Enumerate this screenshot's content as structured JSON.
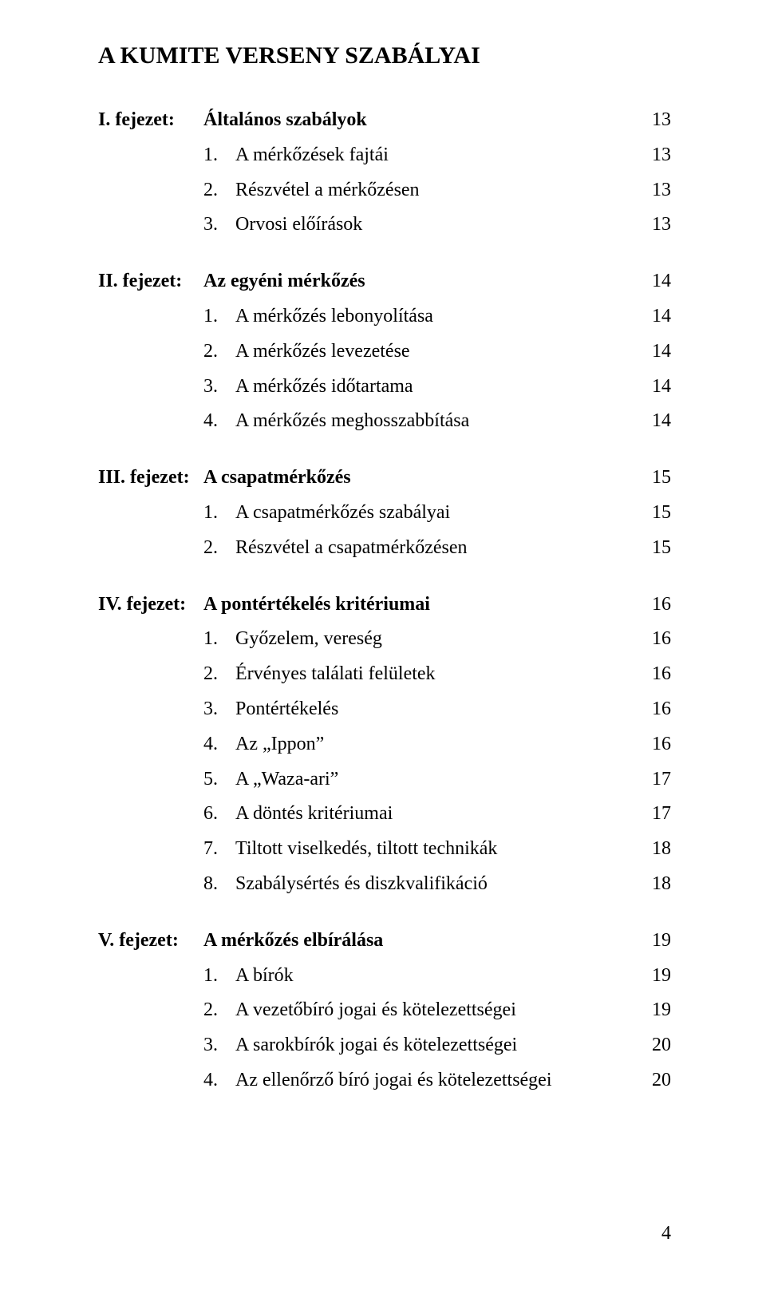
{
  "title": "A KUMITE VERSENY SZABÁLYAI",
  "sections": [
    {
      "lead": "I. fejezet:",
      "head_label": "Általános szabályok",
      "head_page": "13",
      "items": [
        {
          "num": "1.",
          "label": "A mérkőzések fajtái",
          "page": "13"
        },
        {
          "num": "2.",
          "label": "Részvétel a mérkőzésen",
          "page": "13"
        },
        {
          "num": "3.",
          "label": "Orvosi előírások",
          "page": "13"
        }
      ]
    },
    {
      "lead": "II. fejezet:",
      "head_label": "Az egyéni mérkőzés",
      "head_page": "14",
      "items": [
        {
          "num": "1.",
          "label": "A mérkőzés lebonyolítása",
          "page": "14"
        },
        {
          "num": "2.",
          "label": "A mérkőzés levezetése",
          "page": "14"
        },
        {
          "num": "3.",
          "label": "A mérkőzés időtartama",
          "page": "14"
        },
        {
          "num": "4.",
          "label": "A mérkőzés meghosszabbítása",
          "page": "14"
        }
      ]
    },
    {
      "lead": "III. fejezet:",
      "head_label": "A csapatmérkőzés",
      "head_page": "15",
      "items": [
        {
          "num": "1.",
          "label": "A csapatmérkőzés szabályai",
          "page": "15"
        },
        {
          "num": "2.",
          "label": "Részvétel a csapatmérkőzésen",
          "page": "15"
        }
      ]
    },
    {
      "lead": "IV. fejezet:",
      "head_label": "A pontértékelés kritériumai",
      "head_page": "16",
      "items": [
        {
          "num": "1.",
          "label": "Győzelem, vereség",
          "page": "16"
        },
        {
          "num": "2.",
          "label": "Érvényes találati felületek",
          "page": "16"
        },
        {
          "num": "3.",
          "label": "Pontértékelés",
          "page": "16"
        },
        {
          "num": "4.",
          "label": "Az „Ippon”",
          "page": "16"
        },
        {
          "num": "5.",
          "label": "A „Waza-ari”",
          "page": "17"
        },
        {
          "num": "6.",
          "label": "A döntés kritériumai",
          "page": "17"
        },
        {
          "num": "7.",
          "label": "Tiltott viselkedés, tiltott technikák",
          "page": "18"
        },
        {
          "num": "8.",
          "label": "Szabálysértés és diszkvalifikáció",
          "page": "18"
        }
      ]
    },
    {
      "lead": "V. fejezet:",
      "head_label": "A mérkőzés elbírálása",
      "head_page": "19",
      "items": [
        {
          "num": "1.",
          "label": "A bírók",
          "page": "19"
        },
        {
          "num": "2.",
          "label": "A vezetőbíró jogai és kötelezettségei",
          "page": "19"
        },
        {
          "num": "3.",
          "label": "A sarokbírók jogai és kötelezettségei",
          "page": "20"
        },
        {
          "num": "4.",
          "label": "Az ellenőrző bíró jogai és kötelezettségei",
          "page": "20"
        }
      ]
    }
  ],
  "page_number": "4"
}
